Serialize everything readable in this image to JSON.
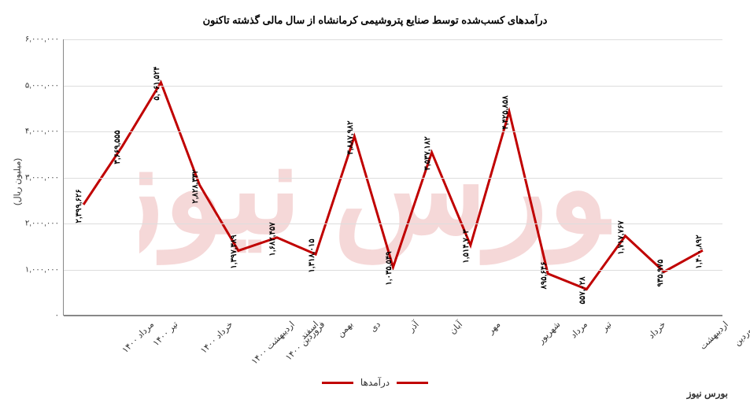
{
  "chart": {
    "type": "line",
    "title": "درآمدهای کسب‌شده توسط صنایع پتروشیمی کرمانشاه از سال مالی گذشته تاکنون",
    "y_axis_label": "(میلیون ریال)",
    "series_name": "درآمدها",
    "line_color": "#c00000",
    "line_width": 3,
    "background_color": "#ffffff",
    "grid_color": "#dddddd",
    "axis_color": "#888888",
    "text_color": "#333333",
    "title_fontsize": 13,
    "label_fontsize": 11,
    "datalabel_fontsize": 10,
    "ylim": [
      0,
      6000000
    ],
    "ytick_step": 1000000,
    "yticks": [
      {
        "v": 0,
        "label": "۰"
      },
      {
        "v": 1000000,
        "label": "۱,۰۰۰,۰۰۰"
      },
      {
        "v": 2000000,
        "label": "۲,۰۰۰,۰۰۰"
      },
      {
        "v": 3000000,
        "label": "۳,۰۰۰,۰۰۰"
      },
      {
        "v": 4000000,
        "label": "۴,۰۰۰,۰۰۰"
      },
      {
        "v": 5000000,
        "label": "۵,۰۰۰,۰۰۰"
      },
      {
        "v": 6000000,
        "label": "۶,۰۰۰,۰۰۰"
      }
    ],
    "categories": [
      "فروردین",
      "اردیبهشت",
      "خرداد",
      "تیر",
      "مرداد",
      "شهریور",
      "مهر",
      "آبان",
      "آذر",
      "دی",
      "بهمن",
      "اسفند",
      "فروردین ۱۴۰۰",
      "اردیبهشت ۱۴۰۰",
      "خرداد ۱۴۰۰",
      "تیر ۱۴۰۰",
      "مرداد ۱۴۰۰"
    ],
    "values": [
      1400892,
      935975,
      1717767,
      557028,
      895646,
      4425858,
      1514703,
      3537182,
      1035549,
      3887982,
      1318015,
      1682457,
      1397389,
      2828332,
      5061524,
      3669555,
      2399626
    ],
    "value_labels": [
      "۱,۴۰۰,۸۹۲",
      "۹۳۵,۹۷۵",
      "۱,۷۱۷,۷۶۷",
      "۵۵۷,۰۲۸",
      "۸۹۵,۶۴۶",
      "۴,۴۲۵,۸۵۸",
      "۱,۵۱۴,۷۰۳",
      "۳,۵۳۷,۱۸۲",
      "۱,۰۳۵,۵۴۹",
      "۳,۸۸۷,۹۸۲",
      "۱,۳۱۸,۰۱۵",
      "۱,۶۸۲,۴۵۷",
      "۱,۳۹۷,۳۸۹",
      "۲,۸۲۸,۳۳۲",
      "۵,۰۶۱,۵۲۴",
      "۳,۶۶۹,۵۵۵",
      "۲,۳۹۹,۶۲۶"
    ],
    "watermark_color": "#c00000",
    "watermark_text": "بورس نیوز",
    "footer_brand": "بورس نیوز"
  }
}
